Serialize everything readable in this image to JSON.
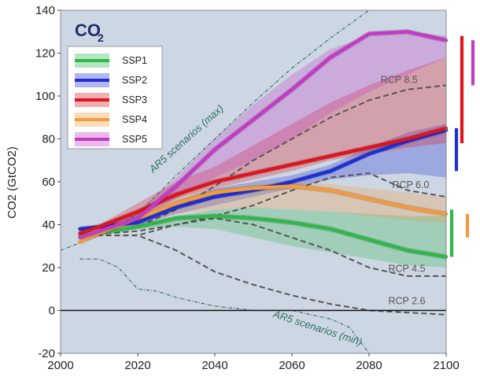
{
  "chart_data": {
    "type": "line",
    "title": "CO2",
    "title_main": "CO",
    "title_sub": "2",
    "ylabel": "CO2 (GtCO2)",
    "xlabel": "",
    "xlim": [
      2000,
      2100
    ],
    "ylim": [
      -20,
      140
    ],
    "xticks": [
      2000,
      2020,
      2040,
      2060,
      2080,
      2100
    ],
    "yticks": [
      -20,
      0,
      20,
      40,
      60,
      80,
      100,
      120,
      140
    ],
    "grid": false,
    "legend_position": "top-left",
    "series": [
      {
        "name": "SSP1",
        "color": "#2fb84a",
        "x": [
          2005,
          2010,
          2020,
          2030,
          2040,
          2050,
          2060,
          2070,
          2080,
          2090,
          2100
        ],
        "values": [
          35,
          36,
          39,
          43,
          44,
          43,
          41,
          38,
          33,
          28,
          25
        ]
      },
      {
        "name": "SSP2",
        "color": "#1f2fd6",
        "x": [
          2005,
          2010,
          2020,
          2030,
          2040,
          2050,
          2060,
          2070,
          2080,
          2090,
          2100
        ],
        "values": [
          38,
          39,
          41,
          48,
          53,
          56,
          60,
          65,
          73,
          79,
          84
        ]
      },
      {
        "name": "SSP3",
        "color": "#e0141e",
        "x": [
          2005,
          2010,
          2020,
          2030,
          2040,
          2050,
          2060,
          2070,
          2080,
          2090,
          2100
        ],
        "values": [
          36,
          39,
          46,
          54,
          60,
          64,
          68,
          72,
          76,
          80,
          85
        ]
      },
      {
        "name": "SSP4",
        "color": "#f29a3d",
        "x": [
          2005,
          2010,
          2020,
          2030,
          2040,
          2050,
          2060,
          2070,
          2080,
          2090,
          2100
        ],
        "values": [
          32,
          36,
          43,
          50,
          55,
          57,
          58,
          56,
          52,
          48,
          45
        ]
      },
      {
        "name": "SSP5",
        "color": "#c43ac4",
        "x": [
          2005,
          2010,
          2020,
          2030,
          2040,
          2050,
          2060,
          2070,
          2080,
          2090,
          2100
        ],
        "values": [
          34,
          37,
          43,
          58,
          75,
          89,
          103,
          118,
          129,
          130,
          126
        ]
      }
    ],
    "bands": [
      {
        "name": "SSP1",
        "x": [
          2010,
          2020,
          2030,
          2040,
          2050,
          2060,
          2070,
          2080,
          2090,
          2100
        ],
        "low": [
          36,
          38,
          39,
          38,
          34,
          30,
          27,
          24,
          21,
          20
        ],
        "high": [
          36,
          40,
          44,
          47,
          48,
          47,
          46,
          45,
          44,
          44
        ]
      },
      {
        "name": "SSP2",
        "x": [
          2010,
          2020,
          2030,
          2040,
          2050,
          2060,
          2070,
          2080,
          2090,
          2100
        ],
        "low": [
          39,
          40,
          45,
          49,
          53,
          57,
          61,
          63,
          64,
          62
        ],
        "high": [
          39,
          43,
          51,
          57,
          60,
          63,
          68,
          76,
          83,
          87
        ]
      },
      {
        "name": "SSP3",
        "x": [
          2010,
          2020,
          2030,
          2040,
          2050,
          2060,
          2070,
          2080,
          2090,
          2100
        ],
        "low": [
          38,
          44,
          52,
          57,
          61,
          65,
          70,
          73,
          76,
          78
        ],
        "high": [
          40,
          50,
          60,
          67,
          77,
          87,
          97,
          105,
          112,
          118
        ]
      },
      {
        "name": "SSP4",
        "x": [
          2010,
          2020,
          2030,
          2040,
          2050,
          2060,
          2070,
          2080,
          2090,
          2100
        ],
        "low": [
          35,
          40,
          45,
          47,
          48,
          47,
          46,
          44,
          42,
          41
        ],
        "high": [
          37,
          46,
          54,
          57,
          59,
          60,
          59,
          57,
          55,
          53
        ]
      },
      {
        "name": "SSP5",
        "x": [
          2010,
          2020,
          2030,
          2040,
          2050,
          2060,
          2070,
          2080,
          2090,
          2100
        ],
        "low": [
          36,
          42,
          52,
          62,
          70,
          80,
          92,
          102,
          110,
          118
        ],
        "high": [
          38,
          46,
          62,
          80,
          96,
          110,
          122,
          128,
          130,
          128
        ]
      }
    ],
    "rcp_lines": [
      {
        "name": "RCP 8.5",
        "x": [
          2005,
          2020,
          2030,
          2040,
          2050,
          2060,
          2070,
          2080,
          2090,
          2100
        ],
        "values": [
          35,
          39,
          47,
          58,
          70,
          80,
          90,
          98,
          103,
          105
        ]
      },
      {
        "name": "RCP 6.0",
        "x": [
          2005,
          2020,
          2030,
          2040,
          2050,
          2060,
          2070,
          2080,
          2090,
          2100
        ],
        "values": [
          35,
          35,
          40,
          44,
          49,
          56,
          62,
          64,
          56,
          53
        ]
      },
      {
        "name": "RCP 4.5",
        "x": [
          2005,
          2020,
          2030,
          2040,
          2050,
          2060,
          2070,
          2080,
          2090,
          2100
        ],
        "values": [
          35,
          37,
          40,
          43,
          40,
          34,
          28,
          20,
          16,
          16
        ]
      },
      {
        "name": "RCP 2.6",
        "x": [
          2005,
          2020,
          2030,
          2040,
          2050,
          2060,
          2070,
          2080,
          2090,
          2100
        ],
        "values": [
          35,
          35,
          28,
          18,
          12,
          7,
          3,
          0,
          -1,
          -2
        ]
      }
    ],
    "ar5_range": [
      {
        "name": "AR5 scenarios (max)",
        "x": [
          2000,
          2010,
          2020,
          2030,
          2040,
          2050,
          2060,
          2070,
          2080
        ],
        "values": [
          28,
          35,
          45,
          63,
          80,
          97,
          113,
          127,
          140
        ]
      },
      {
        "name": "AR5 scenarios (min)",
        "x": [
          2005,
          2010,
          2015,
          2020,
          2025,
          2030,
          2040,
          2050,
          2060,
          2070,
          2075,
          2080
        ],
        "values": [
          24,
          24,
          20,
          10,
          9,
          6,
          2,
          0,
          0,
          -4,
          -8,
          -20
        ]
      }
    ],
    "side_ranges": [
      {
        "name": "SSP1",
        "color": "#2fb84a",
        "low": 25,
        "high": 47
      },
      {
        "name": "SSP2",
        "color": "#1f2fd6",
        "low": 65,
        "high": 85
      },
      {
        "name": "SSP3",
        "color": "#e0141e",
        "low": 78,
        "high": 128
      },
      {
        "name": "SSP4",
        "color": "#f29a3d",
        "low": 34,
        "high": 45
      },
      {
        "name": "SSP5",
        "color": "#c43ac4",
        "low": 105,
        "high": 126
      }
    ],
    "zero_line": 0
  }
}
